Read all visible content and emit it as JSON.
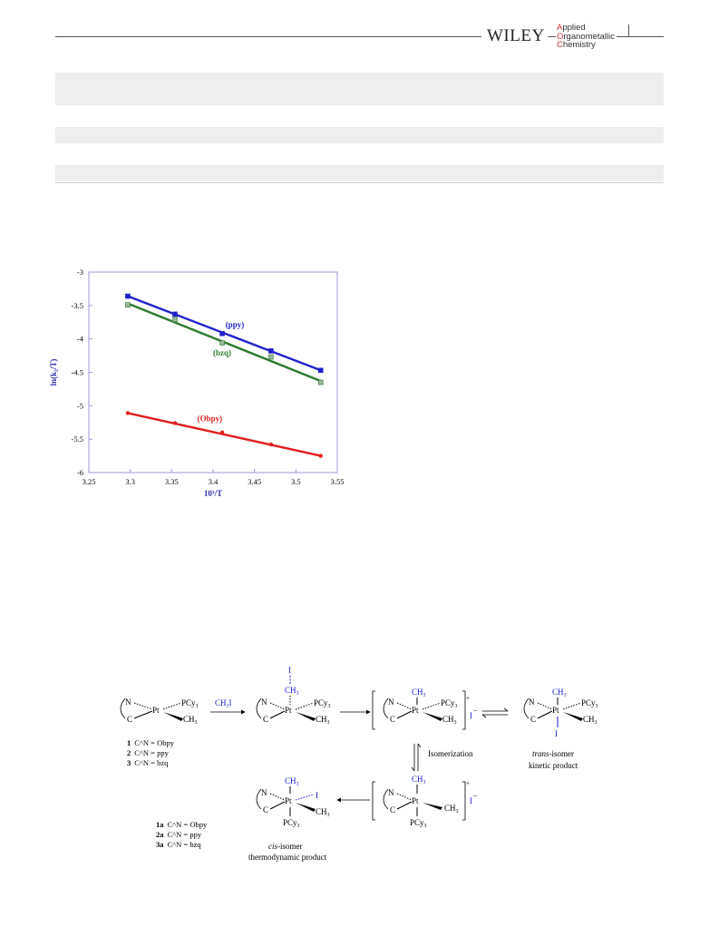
{
  "header": {
    "publisher": "WILEY",
    "journal_lines": [
      {
        "cap": "A",
        "rest": "pplied"
      },
      {
        "cap": "O",
        "rest": "rganometallic"
      },
      {
        "cap": "C",
        "rest": "hemistry"
      }
    ]
  },
  "colors": {
    "ppy": "#2222cc",
    "bzq": "#2e7a2e",
    "obpy": "#e02020",
    "axis_frame": "#9999dd",
    "scheme_blue": "#1a1ad0"
  },
  "chart_data": {
    "type": "scatter",
    "xlabel": "10³/T",
    "ylabel": "ln(k₂/T)",
    "xlim": [
      3.25,
      3.55
    ],
    "ylim": [
      -6,
      -3
    ],
    "xticks": [
      "3.25",
      "3.3",
      "3.35",
      "3.4",
      "3.45",
      "3.5",
      "3.55"
    ],
    "yticks": [
      "-3",
      "-3.5",
      "-4",
      "-4.5",
      "-5",
      "-5.5",
      "-6"
    ],
    "series": [
      {
        "name": "(ppy)",
        "color": "#2222cc",
        "marker": "square",
        "x": [
          3.297,
          3.354,
          3.411,
          3.47,
          3.53
        ],
        "y": [
          -3.36,
          -3.63,
          -3.92,
          -4.18,
          -4.47
        ],
        "fit": [
          [
            3.297,
            -3.36
          ],
          [
            3.53,
            -4.47
          ]
        ]
      },
      {
        "name": "(bzq)",
        "color": "#2e7a2e",
        "marker": "square",
        "x": [
          3.297,
          3.354,
          3.411,
          3.47,
          3.53
        ],
        "y": [
          -3.49,
          -3.71,
          -4.06,
          -4.27,
          -4.65
        ],
        "fit": [
          [
            3.297,
            -3.47
          ],
          [
            3.53,
            -4.63
          ]
        ]
      },
      {
        "name": "(Obpy)",
        "color": "#e02020",
        "marker": "circle",
        "x": [
          3.297,
          3.354,
          3.411,
          3.47,
          3.53
        ],
        "y": [
          -5.11,
          -5.26,
          -5.4,
          -5.58,
          -5.75
        ],
        "fit": [
          [
            3.297,
            -5.11
          ],
          [
            3.53,
            -5.75
          ]
        ]
      }
    ]
  },
  "scheme": {
    "reagent": "CH3I",
    "isomerization": "Isomerization",
    "legend_start": [
      {
        "num": "1",
        "text": "C^N = Obpy"
      },
      {
        "num": "2",
        "text": "C^N = ppy"
      },
      {
        "num": "3",
        "text": "C^N = bzq"
      }
    ],
    "legend_product": [
      {
        "num": "1a",
        "text": "C^N = Obpy"
      },
      {
        "num": "2a",
        "text": "C^N = ppy"
      },
      {
        "num": "3a",
        "text": "C^N = bzq"
      }
    ],
    "trans_title": "trans",
    "trans_rest": "-isomer",
    "trans_sub": "kinetic product",
    "cis_title": "cis",
    "cis_rest": "-isomer",
    "cis_sub": "thermodynamic product"
  }
}
